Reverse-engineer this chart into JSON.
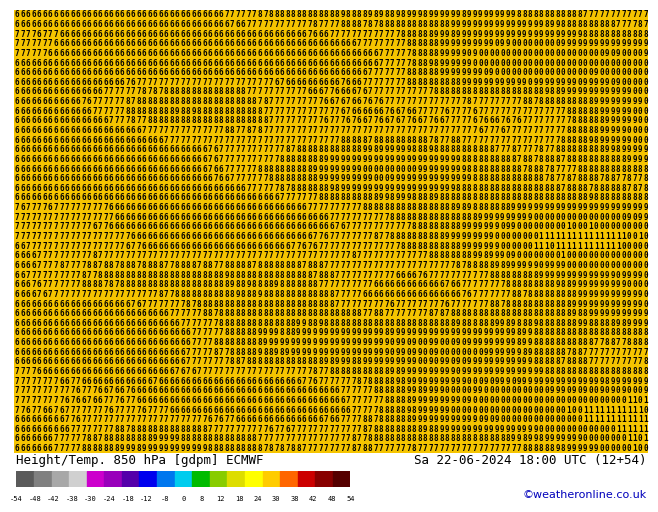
{
  "title_left": "Height/Temp. 850 hPa [gdpm] ECMWF",
  "title_right": "Sa 22-06-2024 18:00 UTC (12+54)",
  "credit": "©weatheronline.co.uk",
  "bg_color": "#f5c400",
  "bottom_bar_color": "#ffffff",
  "text_color": "#000000",
  "credit_color": "#0000bb",
  "font_size_title": 9,
  "font_size_credit": 8,
  "font_size_digits": 5.5,
  "colorbar_colors": [
    "#5a5a5a",
    "#808080",
    "#a8a8a8",
    "#d0d0d0",
    "#cc00cc",
    "#9900bb",
    "#5500aa",
    "#0000ee",
    "#0077ee",
    "#00ccee",
    "#00bb00",
    "#88cc00",
    "#dddd00",
    "#ffff00",
    "#ffcc00",
    "#ff6600",
    "#cc0000",
    "#880000",
    "#550000"
  ],
  "colorbar_tick_labels": [
    "-54",
    "-48",
    "-42",
    "-38",
    "-30",
    "-24",
    "-18",
    "-12",
    "-8",
    "0",
    "8",
    "12",
    "18",
    "24",
    "30",
    "38",
    "42",
    "48",
    "54"
  ],
  "rows": 46,
  "cols": 115
}
